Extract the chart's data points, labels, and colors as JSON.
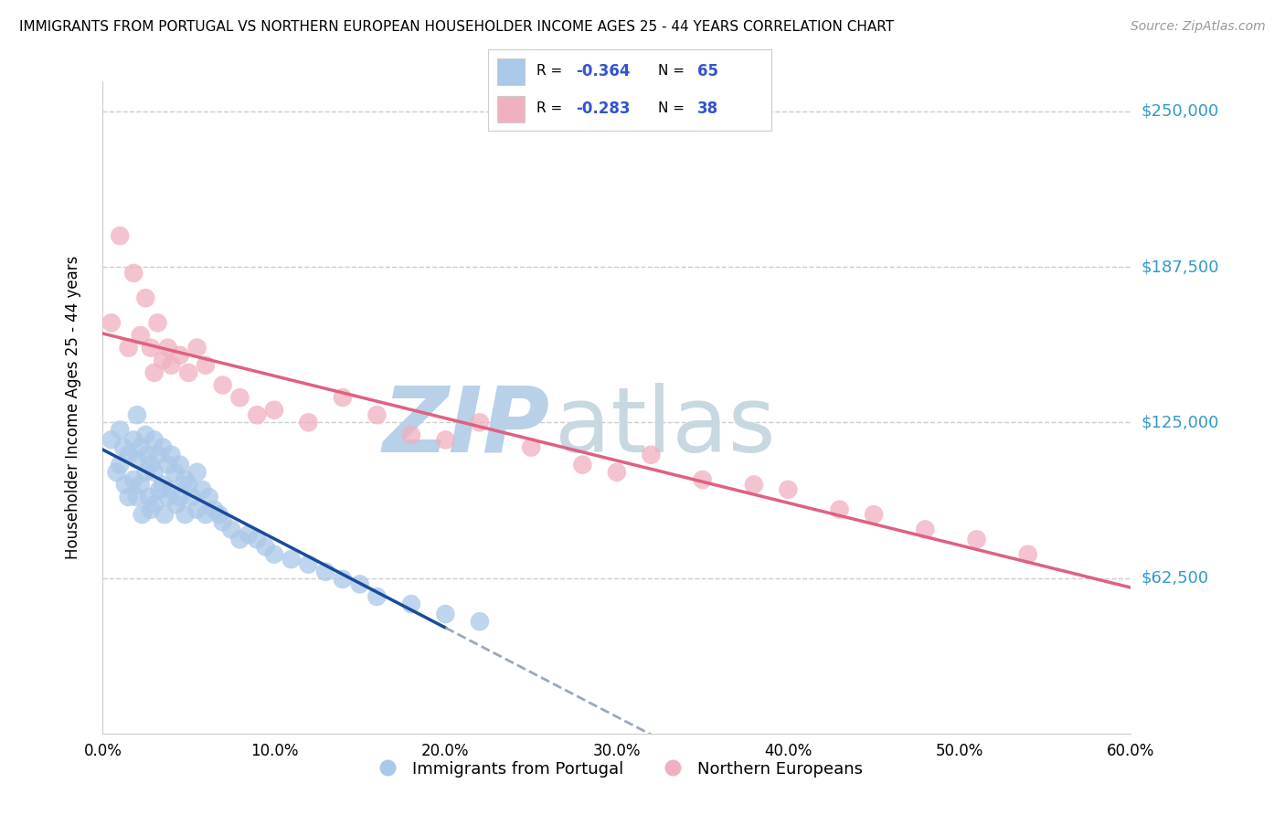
{
  "title": "IMMIGRANTS FROM PORTUGAL VS NORTHERN EUROPEAN HOUSEHOLDER INCOME AGES 25 - 44 YEARS CORRELATION CHART",
  "source": "Source: ZipAtlas.com",
  "ylabel": "Householder Income Ages 25 - 44 years",
  "xlabel_ticks": [
    "0.0%",
    "10.0%",
    "20.0%",
    "30.0%",
    "40.0%",
    "50.0%",
    "60.0%"
  ],
  "ytick_labels": [
    "$62,500",
    "$125,000",
    "$187,500",
    "$250,000"
  ],
  "ytick_values": [
    62500,
    125000,
    187500,
    250000
  ],
  "xlim": [
    0,
    0.6
  ],
  "ylim": [
    0,
    262000
  ],
  "blue_R": -0.364,
  "blue_N": 65,
  "pink_R": -0.283,
  "pink_N": 38,
  "blue_color": "#aac8e8",
  "pink_color": "#f0b0c0",
  "blue_line_color": "#1a4a9a",
  "pink_line_color": "#e06080",
  "dashed_color": "#99aabb",
  "watermark": "ZIPatlas",
  "watermark_blue": "ZIP",
  "watermark_gray": "atlas",
  "watermark_color_blue": "#b8d0e8",
  "watermark_color_gray": "#c8d8e0",
  "legend_label_blue": "Immigrants from Portugal",
  "legend_label_pink": "Northern Europeans",
  "blue_x": [
    0.005,
    0.008,
    0.01,
    0.01,
    0.012,
    0.013,
    0.015,
    0.015,
    0.018,
    0.018,
    0.02,
    0.02,
    0.02,
    0.022,
    0.022,
    0.023,
    0.025,
    0.025,
    0.026,
    0.027,
    0.028,
    0.028,
    0.03,
    0.03,
    0.03,
    0.032,
    0.033,
    0.035,
    0.035,
    0.036,
    0.038,
    0.038,
    0.04,
    0.04,
    0.042,
    0.043,
    0.045,
    0.045,
    0.048,
    0.048,
    0.05,
    0.052,
    0.055,
    0.055,
    0.058,
    0.06,
    0.062,
    0.065,
    0.068,
    0.07,
    0.075,
    0.08,
    0.085,
    0.09,
    0.095,
    0.1,
    0.11,
    0.12,
    0.13,
    0.14,
    0.15,
    0.16,
    0.18,
    0.2,
    0.22
  ],
  "blue_y": [
    118000,
    105000,
    122000,
    108000,
    115000,
    100000,
    112000,
    95000,
    118000,
    102000,
    128000,
    110000,
    95000,
    115000,
    100000,
    88000,
    120000,
    105000,
    112000,
    95000,
    108000,
    90000,
    118000,
    105000,
    92000,
    112000,
    98000,
    115000,
    100000,
    88000,
    108000,
    95000,
    112000,
    98000,
    105000,
    92000,
    108000,
    95000,
    102000,
    88000,
    100000,
    95000,
    105000,
    90000,
    98000,
    88000,
    95000,
    90000,
    88000,
    85000,
    82000,
    78000,
    80000,
    78000,
    75000,
    72000,
    70000,
    68000,
    65000,
    62000,
    60000,
    55000,
    52000,
    48000,
    45000
  ],
  "pink_x": [
    0.005,
    0.01,
    0.015,
    0.018,
    0.022,
    0.025,
    0.028,
    0.03,
    0.032,
    0.035,
    0.038,
    0.04,
    0.045,
    0.05,
    0.055,
    0.06,
    0.07,
    0.08,
    0.09,
    0.1,
    0.12,
    0.14,
    0.16,
    0.18,
    0.2,
    0.22,
    0.25,
    0.28,
    0.3,
    0.32,
    0.35,
    0.38,
    0.4,
    0.43,
    0.45,
    0.48,
    0.51,
    0.54
  ],
  "pink_y": [
    165000,
    200000,
    155000,
    185000,
    160000,
    175000,
    155000,
    145000,
    165000,
    150000,
    155000,
    148000,
    152000,
    145000,
    155000,
    148000,
    140000,
    135000,
    128000,
    130000,
    125000,
    135000,
    128000,
    120000,
    118000,
    125000,
    115000,
    108000,
    105000,
    112000,
    102000,
    100000,
    98000,
    90000,
    88000,
    82000,
    78000,
    72000
  ]
}
